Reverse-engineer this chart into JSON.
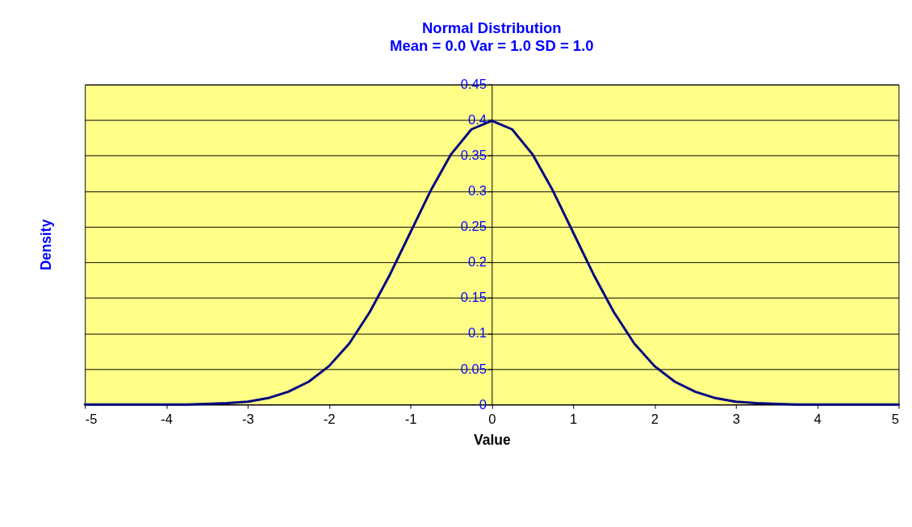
{
  "chart_data": {
    "type": "line",
    "title": "Normal Distribution",
    "subtitle": "Mean = 0.0  Var = 1.0  SD = 1.0",
    "xlabel": "Value",
    "ylabel": "Density",
    "x": [
      -5,
      -4.5,
      -4,
      -3.75,
      -3.5,
      -3.25,
      -3,
      -2.75,
      -2.5,
      -2.25,
      -2,
      -1.75,
      -1.5,
      -1.25,
      -1,
      -0.75,
      -0.5,
      -0.25,
      0,
      0.25,
      0.5,
      0.75,
      1,
      1.25,
      1.5,
      1.75,
      2,
      2.25,
      2.5,
      2.75,
      3,
      3.25,
      3.5,
      3.75,
      4,
      4.5,
      5
    ],
    "series": [
      {
        "color": "#000080",
        "values": [
          0,
          0,
          0,
          0,
          0.001,
          0.002,
          0.004,
          0.009,
          0.018,
          0.032,
          0.054,
          0.086,
          0.13,
          0.183,
          0.242,
          0.301,
          0.352,
          0.387,
          0.399,
          0.387,
          0.352,
          0.301,
          0.242,
          0.183,
          0.13,
          0.086,
          0.054,
          0.032,
          0.018,
          0.009,
          0.004,
          0.002,
          0.001,
          0,
          0,
          0,
          0
        ]
      }
    ],
    "xlim": [
      -5,
      5
    ],
    "xticks": [
      -5,
      -4,
      -3,
      -2,
      -1,
      0,
      1,
      2,
      3,
      4,
      5
    ],
    "ylim": [
      0,
      0.45
    ],
    "yticks": [
      0,
      0.05,
      0.1,
      0.15,
      0.2,
      0.25,
      0.3,
      0.35,
      0.4,
      0.45
    ],
    "grid": "y",
    "legend": false,
    "marker": "none",
    "line_style": "solid"
  }
}
